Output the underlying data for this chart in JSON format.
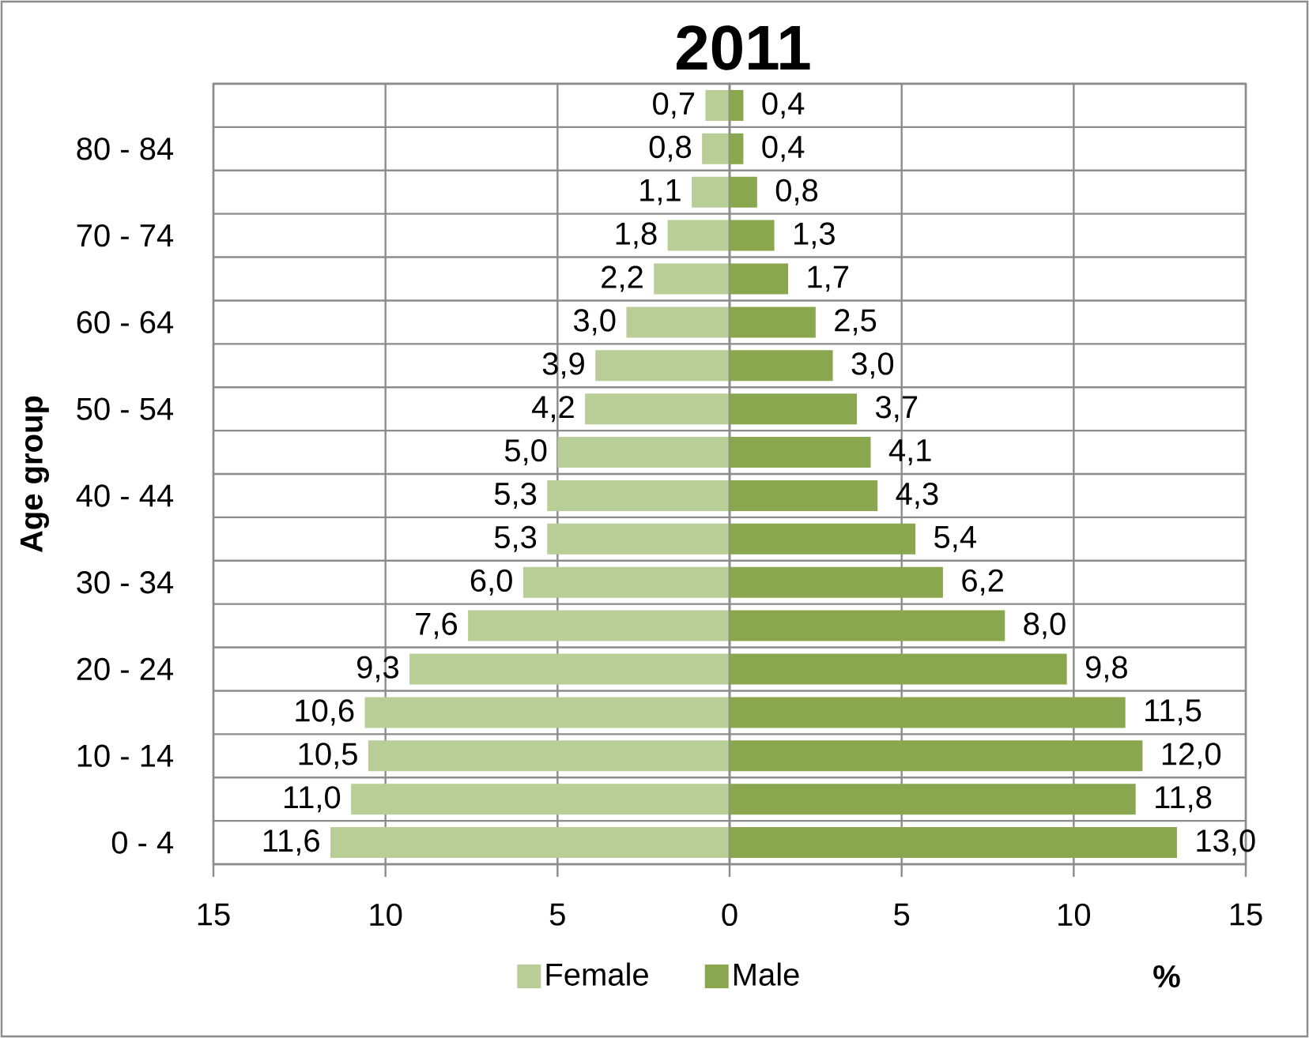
{
  "chart_data": [
    {
      "type": "bar",
      "orientation": "horizontal",
      "title": "2011",
      "ylabel": "Age group",
      "categories": [
        null,
        "80 - 84",
        null,
        "70 - 74",
        null,
        "60 - 64",
        null,
        "50 - 54",
        null,
        "40 - 44",
        null,
        "30 - 34",
        null,
        "20 - 24",
        null,
        "10 - 14",
        null,
        "0 - 4"
      ],
      "series": [
        {
          "name": "Female",
          "color": "#b9cd96",
          "values": [
            0.7,
            0.8,
            1.1,
            1.8,
            2.2,
            3.0,
            3.9,
            4.2,
            5.0,
            5.3,
            5.3,
            6.0,
            7.6,
            9.3,
            10.6,
            10.5,
            11.0,
            11.6
          ],
          "value_labels": [
            "0,7",
            "0,8",
            "1,1",
            "1,8",
            "2,2",
            "3,0",
            "3,9",
            "4,2",
            "5,0",
            "5,3",
            "5,3",
            "6,0",
            "7,6",
            "9,3",
            "10,6",
            "10,5",
            "11,0",
            "11,6"
          ]
        }
      ],
      "xlim": [
        15,
        0
      ],
      "xticks": [
        15,
        10,
        5
      ],
      "grid": true,
      "legend": "bottom"
    },
    {
      "type": "bar",
      "orientation": "horizontal",
      "xlabel": "%",
      "categories": [
        null,
        null,
        null,
        null,
        null,
        null,
        null,
        null,
        null,
        null,
        null,
        null,
        null,
        null,
        null,
        null,
        null,
        null
      ],
      "series": [
        {
          "name": "Male",
          "color": "#8aa64f",
          "values": [
            0.4,
            0.4,
            0.8,
            1.3,
            1.7,
            2.5,
            3.0,
            3.7,
            4.1,
            4.3,
            5.4,
            6.2,
            8.0,
            9.8,
            11.5,
            12.0,
            11.8,
            13.0
          ],
          "value_labels": [
            "0,4",
            "0,4",
            "0,8",
            "1,3",
            "1,7",
            "2,5",
            "3,0",
            "3,7",
            "4,1",
            "4,3",
            "5,4",
            "6,2",
            "8,0",
            "9,8",
            "11,5",
            "12,0",
            "11,8",
            "13,0"
          ]
        }
      ],
      "xlim": [
        0,
        15
      ],
      "xticks": [
        0,
        5,
        10,
        15
      ],
      "grid": true,
      "legend": "bottom"
    }
  ]
}
